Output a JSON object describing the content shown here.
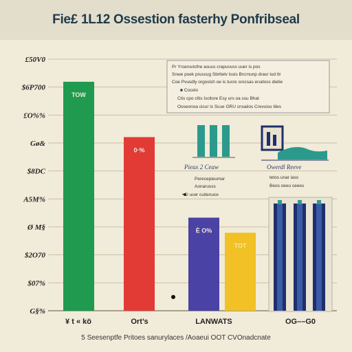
{
  "header": {
    "title": "Fie£ 1L12 Ossestion fasterhy Ponfribseal"
  },
  "legend_box": {
    "lines": [
      "Pr Yrseruvicthe asuus crapuvuss uuer is pos",
      "Snwe poek pruscug Sbrttelv tssis Brcrnunp drasr lud ttr",
      "Coe Pvusdly orgoslsh oe is tucre srocsas erudoss dietie",
      "■ Cocelo",
      "Ctis cpo cltis Iscltore Esy urs oa ssu Bhat",
      "Ooseonoa cicur is Scue ORU cnsaiios Crevuiso tiles"
    ]
  },
  "panels": [
    {
      "title": "Pieux 2 Ceaw",
      "lines": [
        "Perecepieumar",
        "Aonarusss",
        "• D ucer cuitenuce"
      ]
    },
    {
      "title": "Owerdl Reeve",
      "lines": [
        "tetos unar iass",
        "Beos oeeu ceees"
      ]
    }
  ],
  "footer": {
    "note": "5 Seesenptfe Pritoes sanurylaces  /Aoaeui OOT CVOnadcnate"
  },
  "colors": {
    "green": "#1f9a4e",
    "red": "#e23a35",
    "purple": "#4a42a4",
    "yellow": "#f1c125",
    "teal": "#2b9a8c",
    "navy": "#1f2f6b",
    "grid": "#cbbfa4"
  },
  "chart_data": {
    "type": "bar",
    "categories": [
      "¥ t « kö",
      "Ort’s",
      "LANWATS",
      "OG––G0"
    ],
    "yticks": [
      "£50V0",
      "$6P700",
      "£O%%",
      "Gø&",
      "$8DC",
      "A5M%",
      "Ø M§",
      "$2O70",
      "$07%",
      "G§%"
    ],
    "bars": [
      {
        "category_index": 0,
        "value": 91,
        "label": "TOW",
        "color": "#1f9a4e"
      },
      {
        "category_index": 1,
        "value": 69,
        "label": "0·%",
        "color": "#e23a35"
      },
      {
        "category_index": 2,
        "value": 37,
        "label": "È O%",
        "color": "#4a42a4"
      },
      {
        "category_index": 2,
        "value": 31,
        "label": "TOT",
        "color": "#f1c125"
      }
    ],
    "ylim": [
      0,
      100
    ],
    "grid": true
  }
}
